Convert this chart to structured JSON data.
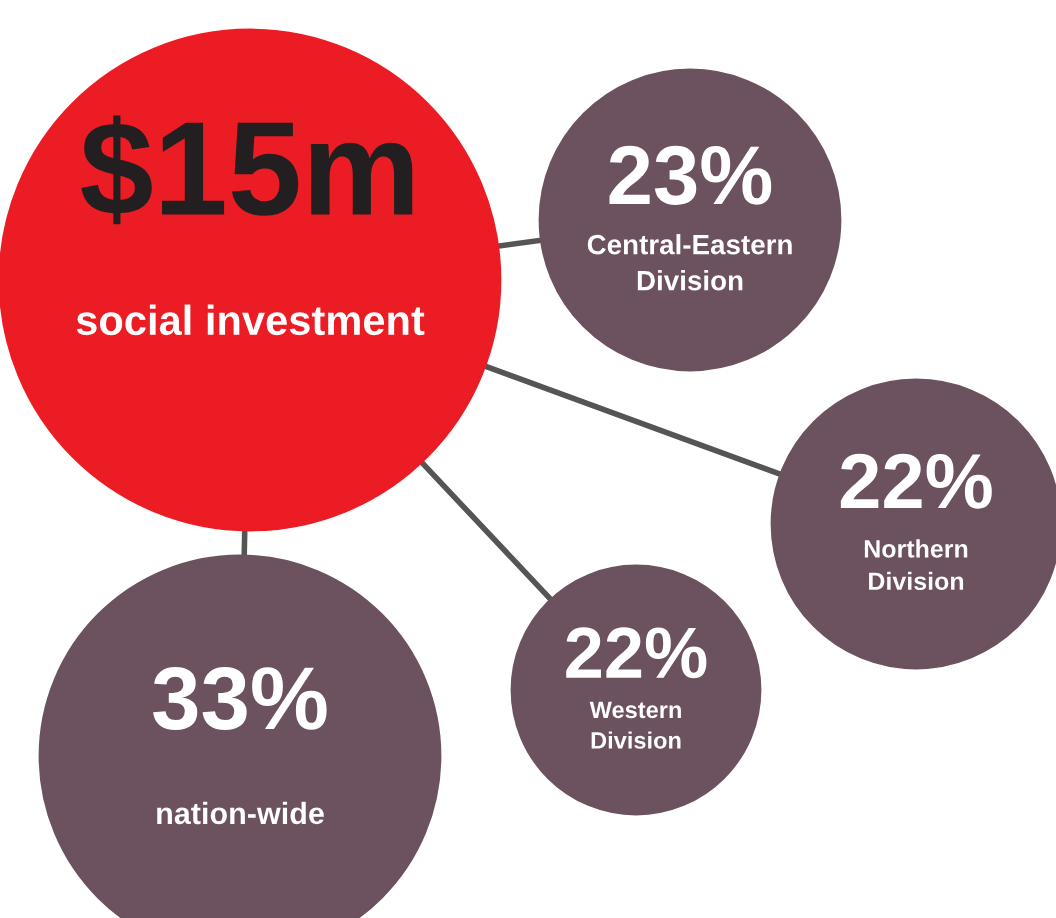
{
  "chart_data": {
    "type": "other",
    "title": "$15m",
    "subtitle": "social investment",
    "categories": [
      "Central-Eastern Division",
      "Northern Division",
      "Western Division",
      "nation-wide"
    ],
    "values": [
      23,
      22,
      22,
      33
    ],
    "value_labels": [
      "23%",
      "22%",
      "22%",
      "33%"
    ],
    "colors": [
      "#6b525e",
      "#6b525e",
      "#6b525e",
      "#6b525e"
    ],
    "color": "#ec1c24"
  }
}
